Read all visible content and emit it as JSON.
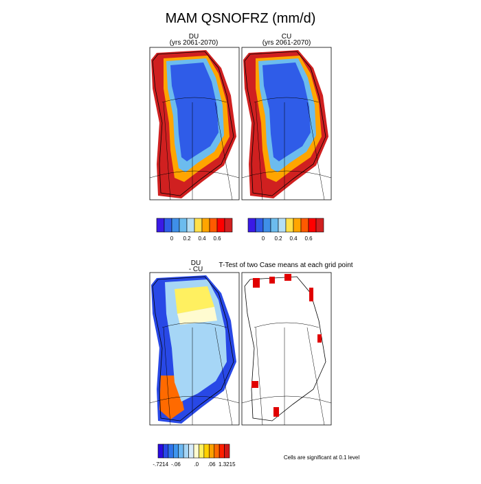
{
  "title": "MAM QSNOFRZ (mm/d)",
  "panels": [
    {
      "title": "DU",
      "subtitle": "(yrs 2061-2070)"
    },
    {
      "title": "CU",
      "subtitle": "(yrs 2061-2070)"
    },
    {
      "title": "DU",
      "subtitle": "- CU"
    },
    {
      "title": "T-Test of two Case means at each grid point"
    }
  ],
  "colorbars": [
    {
      "colors": [
        "#3a1ae6",
        "#2f5ce8",
        "#3f8fe8",
        "#6cbcee",
        "#b4dff5",
        "#ffe04a",
        "#ffa500",
        "#ff5a00",
        "#ff0000",
        "#d02020"
      ],
      "labels": [
        "0",
        "0.2",
        "0.4",
        "0.6"
      ]
    },
    {
      "colors": [
        "#3a1ae6",
        "#2f5ce8",
        "#3f8fe8",
        "#6cbcee",
        "#b4dff5",
        "#ffe04a",
        "#ffa500",
        "#ff5a00",
        "#ff0000",
        "#d02020"
      ],
      "labels": [
        "0",
        "0.2",
        "0.4",
        "0.6"
      ]
    },
    {
      "colors": [
        "#2a0ae0",
        "#2848e6",
        "#2f74ea",
        "#3f96ee",
        "#6cb8f2",
        "#a6d6f6",
        "#d8ecfa",
        "#fffbd0",
        "#fff060",
        "#ffd000",
        "#ffa000",
        "#ff6a00",
        "#ff2000",
        "#d01818"
      ],
      "labels": [
        "-.7214",
        "-.06",
        ".0",
        ".06",
        "1.3215"
      ]
    }
  ],
  "note": "Cells are significant at 0.1 level"
}
